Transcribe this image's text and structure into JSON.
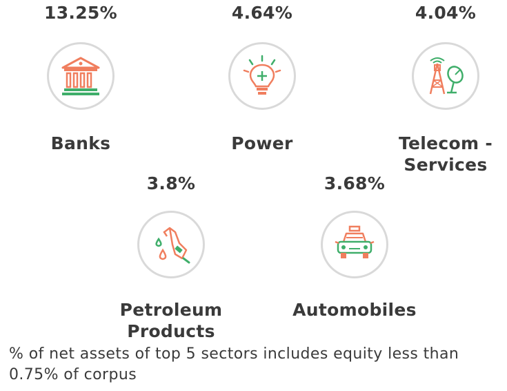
{
  "sectors": [
    {
      "name": "Banks",
      "value": "13.25%",
      "icon": "bank-icon"
    },
    {
      "name": "Power",
      "value": "4.64%",
      "icon": "lightbulb-icon"
    },
    {
      "name_line1": "Telecom -",
      "name_line2": "Services",
      "value": "4.04%",
      "icon": "telecom-tower-icon"
    },
    {
      "name_line1": "Petroleum",
      "name_line2": "Products",
      "value": "3.8%",
      "icon": "fuel-nozzle-icon"
    },
    {
      "name": "Automobiles",
      "value": "3.68%",
      "icon": "car-icon"
    }
  ],
  "footnote": "% of net assets of top 5 sectors includes equity less than 0.75% of corpus",
  "colors": {
    "accent_orange": "#f07e5e",
    "accent_green": "#3fae6a",
    "text": "#3a3a3a",
    "circle_border": "#d9d9d9"
  }
}
